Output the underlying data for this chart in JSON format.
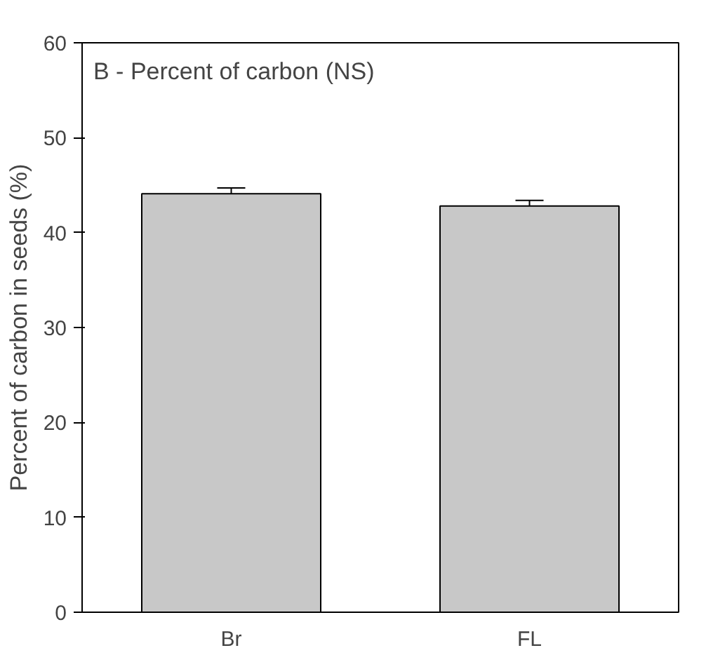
{
  "chart_data": {
    "type": "bar",
    "ylabel": "Percent of carbon in seeds (%)",
    "annotations": [
      "B - Percent of carbon (NS)"
    ],
    "categories": [
      "Br",
      "FL"
    ],
    "values": [
      44.1,
      42.8
    ],
    "errors": [
      0.6,
      0.6
    ],
    "color": "#c8c8c8",
    "ylim": [
      0,
      60
    ],
    "yticks": [
      0,
      10,
      20,
      30,
      40,
      50,
      60
    ],
    "grid": false
  }
}
